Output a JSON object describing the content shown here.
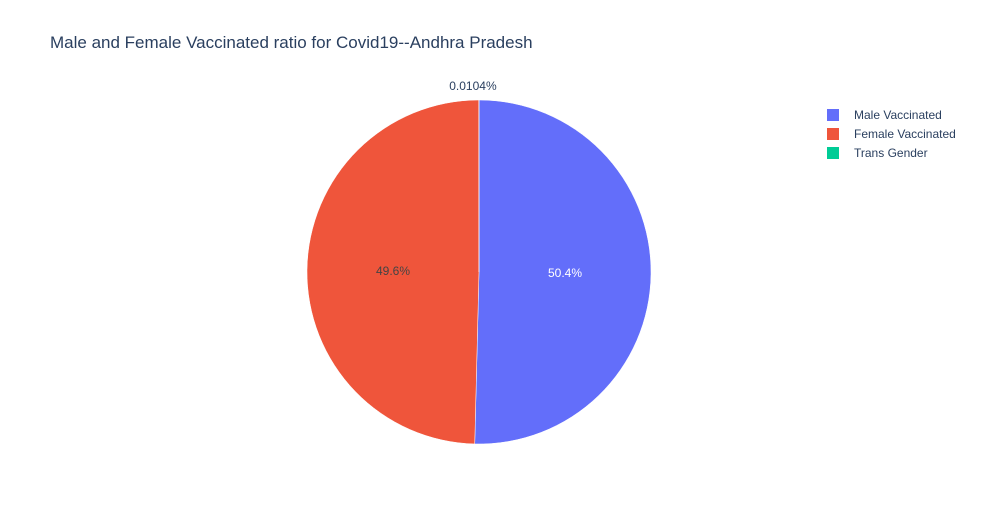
{
  "chart_data": {
    "type": "pie",
    "title": "Male and Female Vaccinated ratio for Covid19--Andhra Pradesh",
    "slices": [
      {
        "name": "Male Vaccinated",
        "percent": 50.4,
        "label": "50.4%",
        "color": "#636efa",
        "label_color": "#ffffff"
      },
      {
        "name": "Female Vaccinated",
        "percent": 49.6,
        "label": "49.6%",
        "color": "#ef553b",
        "label_color": "#444444"
      },
      {
        "name": "Trans Gender",
        "percent": 0.0104,
        "label": "0.0104%",
        "color": "#00cc96",
        "label_color": "#2a3f5f"
      }
    ],
    "legend_position": "top-right",
    "direction": "clockwise",
    "start_angle": "top"
  }
}
